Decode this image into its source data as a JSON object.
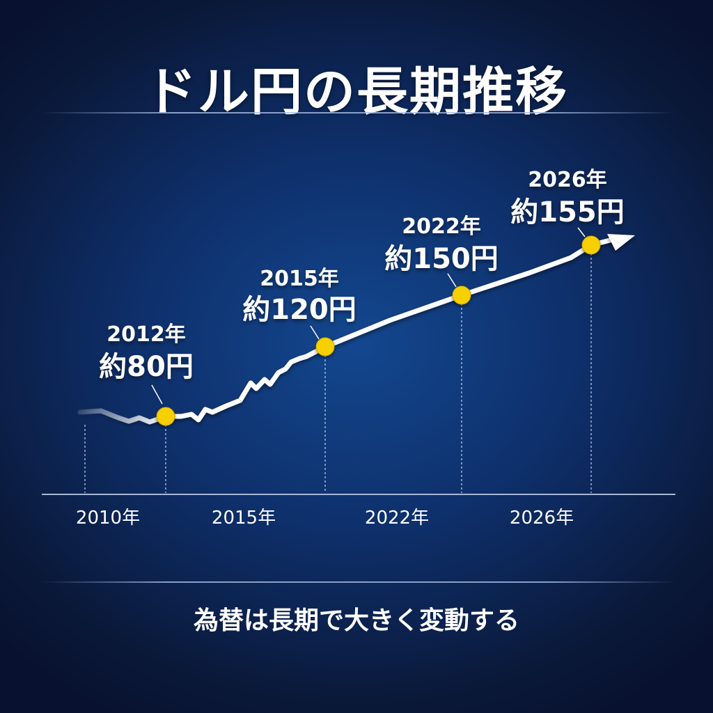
{
  "title": "ドル円の長期推移",
  "subtitle": "為替は長期で大きく変動する",
  "chart_data": {
    "type": "line",
    "title": "ドル円の長期推移",
    "x_tick_labels": [
      "2010年",
      "2015年",
      "2022年",
      "2026年"
    ],
    "points": [
      {
        "year_label": "2012年",
        "value_label": "約80円",
        "x": 2012,
        "y": 80
      },
      {
        "year_label": "2015年",
        "value_label": "約120円",
        "x": 2015,
        "y": 120
      },
      {
        "year_label": "2022年",
        "value_label": "約150円",
        "x": 2022,
        "y": 150
      },
      {
        "year_label": "2026年",
        "value_label": "約155円",
        "x": 2026,
        "y": 155
      }
    ],
    "trend": "upward arrow",
    "grid": false,
    "colors": {
      "line": "#ffffff",
      "marker": "#f7d000",
      "background": "#0e2f6a"
    }
  }
}
